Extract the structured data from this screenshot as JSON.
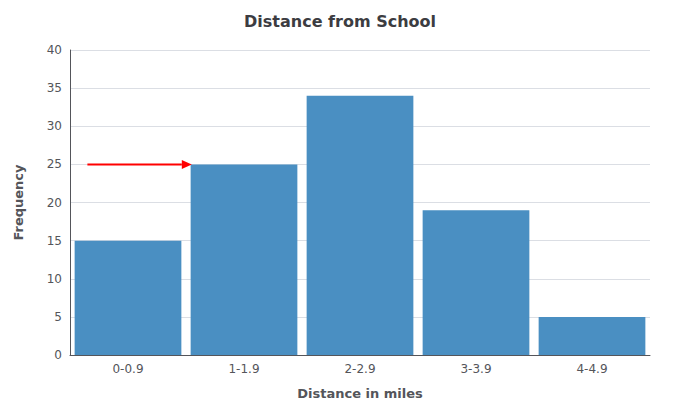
{
  "chart_data": {
    "type": "bar",
    "title": "Distance from School",
    "xlabel": "Distance in miles",
    "ylabel": "Frequency",
    "categories": [
      "0-0.9",
      "1-1.9",
      "2-2.9",
      "3-3.9",
      "4-4.9"
    ],
    "values": [
      15,
      25,
      34,
      19,
      5
    ],
    "color": "#4a8fc2",
    "ylim": [
      0,
      40
    ],
    "yticks": [
      0,
      5,
      10,
      15,
      20,
      25,
      30,
      35,
      40
    ],
    "grid": true,
    "annotations": [
      {
        "type": "arrow",
        "y": 25,
        "category": "1-1.9",
        "color": "red"
      }
    ]
  }
}
